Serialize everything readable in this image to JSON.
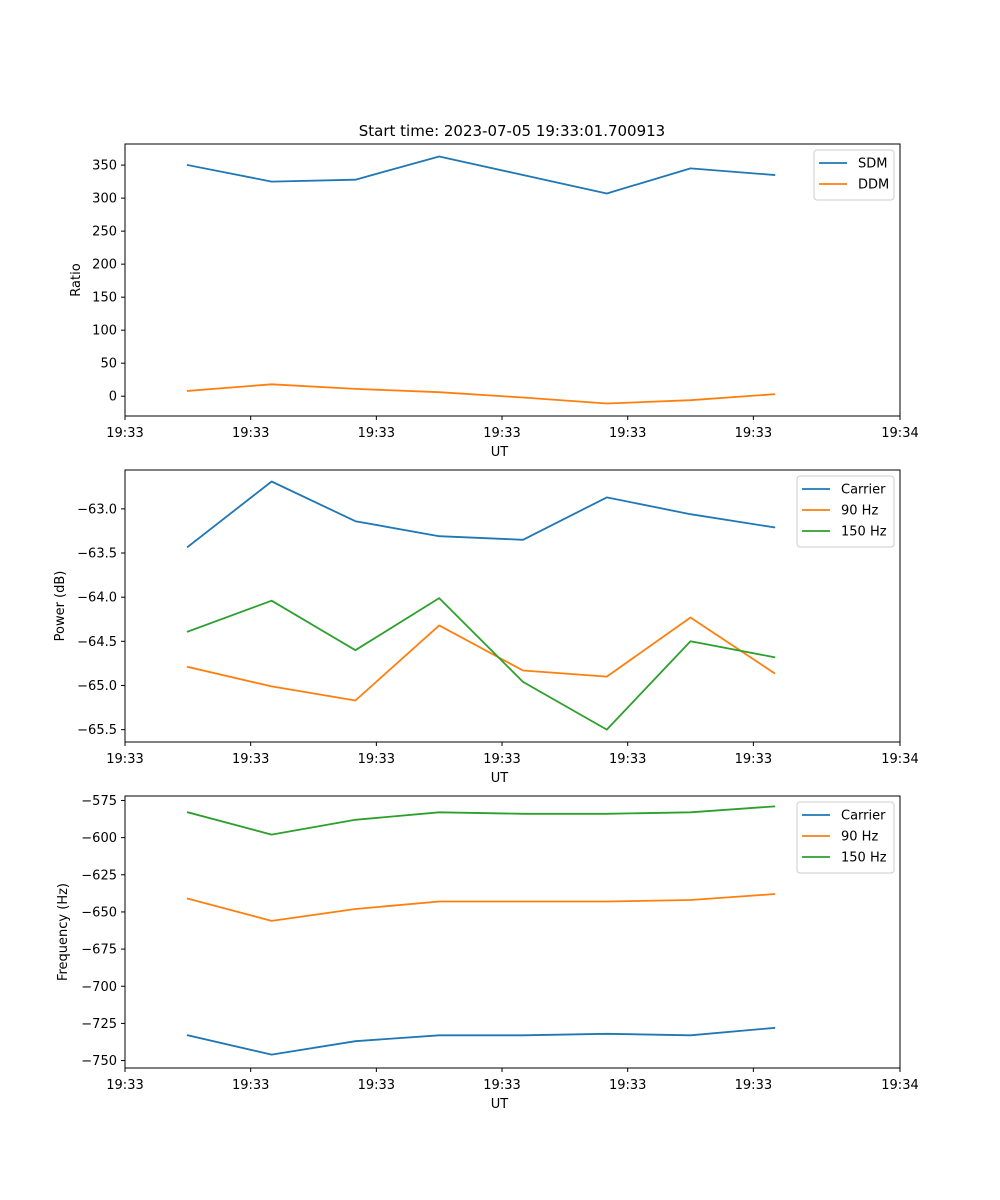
{
  "figure_title": "Start time: 2023-07-05 19:33:01.700913",
  "colors": {
    "blue": "#1f77b4",
    "orange": "#ff7f0e",
    "green": "#2ca02c"
  },
  "chart_data": [
    {
      "type": "line",
      "xlabel": "UT",
      "ylabel": "Ratio",
      "xlim": [
        0,
        9.25
      ],
      "ylim": [
        -30,
        382
      ],
      "x_ticks": [
        0,
        1.5,
        3,
        4.5,
        6,
        7.5,
        9.25
      ],
      "x_tick_labels": [
        "19:33",
        "19:33",
        "19:33",
        "19:33",
        "19:33",
        "19:33",
        "19:34"
      ],
      "y_ticks": [
        0,
        50,
        100,
        150,
        200,
        250,
        300,
        350
      ],
      "y_tick_labels": [
        "0",
        "50",
        "100",
        "150",
        "200",
        "250",
        "300",
        "350"
      ],
      "legend_position": "top-right",
      "series": [
        {
          "name": "SDM",
          "color": "blue",
          "x": [
            0.75,
            1.75,
            2.75,
            3.75,
            4.75,
            5.75,
            6.75,
            7.75
          ],
          "values": [
            350,
            325,
            328,
            363,
            335,
            307,
            345,
            335
          ]
        },
        {
          "name": "DDM",
          "color": "orange",
          "x": [
            0.75,
            1.75,
            2.75,
            3.75,
            4.75,
            5.75,
            6.75,
            7.75
          ],
          "values": [
            8,
            18,
            11,
            6,
            -2,
            -11,
            -6,
            3
          ]
        }
      ]
    },
    {
      "type": "line",
      "xlabel": "UT",
      "ylabel": "Power (dB)",
      "xlim": [
        0,
        9.25
      ],
      "ylim": [
        -65.64,
        -62.56
      ],
      "x_ticks": [
        0,
        1.5,
        3,
        4.5,
        6,
        7.5,
        9.25
      ],
      "x_tick_labels": [
        "19:33",
        "19:33",
        "19:33",
        "19:33",
        "19:33",
        "19:33",
        "19:34"
      ],
      "y_ticks": [
        -63.0,
        -63.5,
        -64.0,
        -64.5,
        -65.0,
        -65.5
      ],
      "y_tick_labels": [
        "−63.0",
        "−63.5",
        "−64.0",
        "−64.5",
        "−65.0",
        "−65.5"
      ],
      "legend_position": "top-right",
      "series": [
        {
          "name": "Carrier",
          "color": "blue",
          "x": [
            0.75,
            1.75,
            2.75,
            3.75,
            4.75,
            5.75,
            6.75,
            7.75
          ],
          "values": [
            -63.43,
            -62.69,
            -63.14,
            -63.31,
            -63.35,
            -62.87,
            -63.06,
            -63.21
          ]
        },
        {
          "name": "90 Hz",
          "color": "orange",
          "x": [
            0.75,
            1.75,
            2.75,
            3.75,
            4.75,
            5.75,
            6.75,
            7.75
          ],
          "values": [
            -64.79,
            -65.01,
            -65.17,
            -64.32,
            -64.83,
            -64.9,
            -64.23,
            -64.86
          ]
        },
        {
          "name": "150 Hz",
          "color": "green",
          "x": [
            0.75,
            1.75,
            2.75,
            3.75,
            4.75,
            5.75,
            6.75,
            7.75
          ],
          "values": [
            -64.39,
            -64.04,
            -64.6,
            -64.01,
            -64.96,
            -65.5,
            -64.5,
            -64.68
          ]
        }
      ]
    },
    {
      "type": "line",
      "xlabel": "UT",
      "ylabel": "Frequency (Hz)",
      "xlim": [
        0,
        9.25
      ],
      "ylim": [
        -755,
        -572
      ],
      "x_ticks": [
        0,
        1.5,
        3,
        4.5,
        6,
        7.5,
        9.25
      ],
      "x_tick_labels": [
        "19:33",
        "19:33",
        "19:33",
        "19:33",
        "19:33",
        "19:33",
        "19:34"
      ],
      "y_ticks": [
        -575,
        -600,
        -625,
        -650,
        -675,
        -700,
        -725,
        -750
      ],
      "y_tick_labels": [
        "−575",
        "−600",
        "−625",
        "−650",
        "−675",
        "−700",
        "−725",
        "−750"
      ],
      "legend_position": "top-right",
      "series": [
        {
          "name": "Carrier",
          "color": "blue",
          "x": [
            0.75,
            1.75,
            2.75,
            3.75,
            4.75,
            5.75,
            6.75,
            7.75
          ],
          "values": [
            -733,
            -746,
            -737,
            -733,
            -733,
            -732,
            -733,
            -728
          ]
        },
        {
          "name": "90 Hz",
          "color": "orange",
          "x": [
            0.75,
            1.75,
            2.75,
            3.75,
            4.75,
            5.75,
            6.75,
            7.75
          ],
          "values": [
            -641,
            -656,
            -648,
            -643,
            -643,
            -643,
            -642,
            -638
          ]
        },
        {
          "name": "150 Hz",
          "color": "green",
          "x": [
            0.75,
            1.75,
            2.75,
            3.75,
            4.75,
            5.75,
            6.75,
            7.75
          ],
          "values": [
            -583,
            -598,
            -588,
            -583,
            -584,
            -584,
            -583,
            -579
          ]
        }
      ]
    }
  ]
}
